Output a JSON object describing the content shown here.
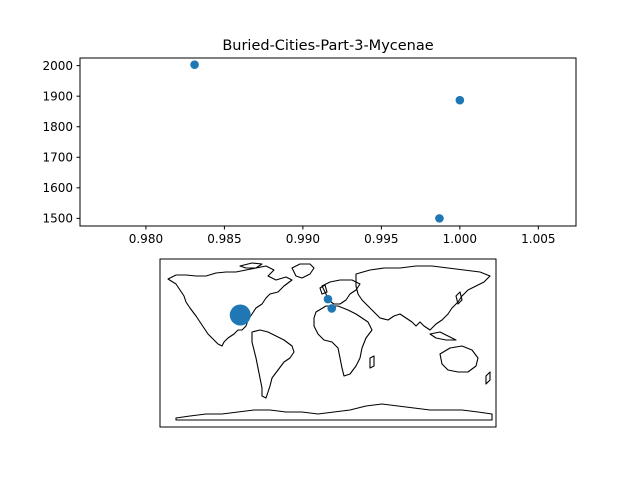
{
  "chart_data": [
    {
      "type": "scatter",
      "title": "Buried-Cities-Part-3-Mycenae",
      "xlabel": "",
      "ylabel": "",
      "xlim": [
        0.9758,
        1.0074
      ],
      "ylim": [
        1475,
        2025
      ],
      "xticks": [
        0.98,
        0.985,
        0.99,
        0.995,
        1.0,
        1.005
      ],
      "xtick_labels": [
        "0.980",
        "0.985",
        "0.990",
        "0.995",
        "1.000",
        "1.005"
      ],
      "yticks": [
        1500,
        1600,
        1700,
        1800,
        1900,
        2000
      ],
      "ytick_labels": [
        "1500",
        "1600",
        "1700",
        "1800",
        "1900",
        "2000"
      ],
      "grid": false,
      "marker_color": "#1f77b4",
      "points": [
        {
          "x": 0.9831,
          "y": 2003
        },
        {
          "x": 1.0,
          "y": 1887
        },
        {
          "x": 0.9987,
          "y": 1500
        }
      ]
    },
    {
      "type": "map",
      "projection": "equirectangular",
      "extent_lon": [
        -180,
        180
      ],
      "extent_lat": [
        -90,
        90
      ],
      "coastline_color": "#000000",
      "marker_color": "#1f77b4",
      "markers": [
        {
          "lon": -94,
          "lat": 30,
          "size": "large"
        },
        {
          "lon": 0,
          "lat": 47,
          "size": "small"
        },
        {
          "lon": 4,
          "lat": 37,
          "size": "small"
        }
      ]
    }
  ]
}
